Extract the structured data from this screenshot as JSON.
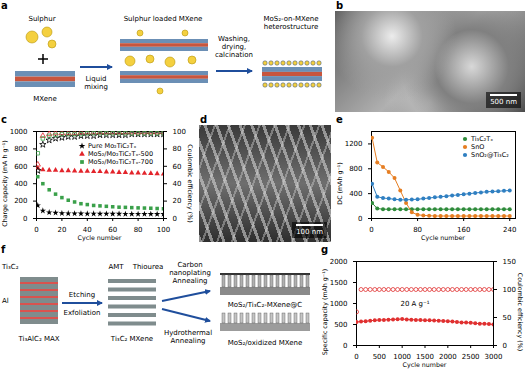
{
  "chart_data": [
    {
      "panel": "c",
      "type": "scatter",
      "x_label": "Cycle number",
      "y_label": "Charge capacity (mA h g⁻¹)",
      "y2_label": "Coulombic efficiency (%)",
      "x": [
        1,
        5,
        10,
        15,
        20,
        25,
        30,
        35,
        40,
        45,
        50,
        55,
        60,
        65,
        70,
        75,
        80,
        85,
        90,
        95,
        100
      ],
      "xlim": [
        0,
        100
      ],
      "xticks": [
        0,
        20,
        40,
        60,
        80,
        100
      ],
      "ylim": [
        0,
        1000
      ],
      "yticks": [
        0,
        200,
        400,
        600,
        800,
        1000
      ],
      "y2lim": [
        0,
        100
      ],
      "y2ticks": [
        0,
        20,
        40,
        60,
        80,
        100
      ],
      "legend": "upper right",
      "series": [
        {
          "name": "Pure Mo₂TiC₂Tₓ",
          "color": "#000000",
          "marker": "star",
          "values": [
            150,
            90,
            70,
            65,
            60,
            58,
            57,
            56,
            55,
            55,
            54,
            54,
            53,
            53,
            52,
            52,
            52,
            51,
            51,
            50,
            50
          ],
          "efficiency": [
            55,
            85,
            90,
            92,
            93,
            94,
            94,
            95,
            95,
            95,
            96,
            96,
            96,
            96,
            96,
            97,
            97,
            97,
            97,
            97,
            97
          ]
        },
        {
          "name": "MoS₂/Mo₂TiC₂Tₓ-500",
          "color": "#e3242b",
          "marker": "triangle",
          "values": [
            580,
            560,
            555,
            555,
            550,
            550,
            548,
            545,
            545,
            540,
            540,
            535,
            535,
            530,
            530,
            525,
            525,
            520,
            518,
            515,
            512
          ],
          "efficiency": [
            62,
            95,
            97,
            98,
            98,
            98,
            98,
            99,
            99,
            99,
            99,
            99,
            99,
            99,
            99,
            99,
            99,
            99,
            99,
            99,
            99
          ]
        },
        {
          "name": "MoS₂/Mo₂TiC₂Tₓ-700",
          "color": "#3aa04a",
          "marker": "square",
          "values": [
            480,
            400,
            330,
            280,
            240,
            210,
            190,
            170,
            160,
            150,
            145,
            140,
            135,
            130,
            128,
            125,
            122,
            120,
            118,
            115,
            112
          ],
          "efficiency": [
            75,
            92,
            95,
            96,
            97,
            97,
            97,
            97,
            98,
            98,
            98,
            98,
            98,
            98,
            98,
            98,
            98,
            98,
            98,
            98,
            98
          ]
        }
      ]
    },
    {
      "panel": "e",
      "type": "line",
      "x_label": "Cycle number",
      "y_label": "DC (mAh g⁻¹)",
      "x": [
        1,
        10,
        20,
        30,
        40,
        50,
        60,
        70,
        80,
        90,
        100,
        110,
        120,
        130,
        140,
        150,
        160,
        170,
        180,
        190,
        200,
        210,
        220,
        230,
        240
      ],
      "xlim": [
        0,
        250
      ],
      "xticks": [
        0,
        80,
        160,
        240
      ],
      "ylim": [
        0,
        1400
      ],
      "yticks": [
        0,
        400,
        800,
        1200
      ],
      "legend": "upper right",
      "series": [
        {
          "name": "Ti₃C₂Tₓ",
          "color": "#2e8b3a",
          "marker": "circle",
          "values": [
            250,
            160,
            150,
            150,
            150,
            150,
            150,
            150,
            150,
            150,
            150,
            150,
            150,
            150,
            150,
            150,
            150,
            150,
            150,
            150,
            150,
            150,
            150,
            150,
            150
          ]
        },
        {
          "name": "SnO",
          "color": "#e67e22",
          "marker": "circle",
          "values": [
            1300,
            900,
            830,
            750,
            650,
            450,
            250,
            100,
            60,
            50,
            45,
            40,
            40,
            40,
            40,
            40,
            40,
            40,
            40,
            40,
            40,
            40,
            40,
            40,
            40
          ]
        },
        {
          "name": "SnO₂@Ti₃C₂",
          "color": "#2f7fc1",
          "marker": "circle",
          "values": [
            560,
            350,
            330,
            320,
            310,
            300,
            300,
            305,
            310,
            320,
            330,
            340,
            350,
            360,
            370,
            380,
            390,
            400,
            410,
            420,
            430,
            435,
            440,
            445,
            450
          ]
        }
      ]
    },
    {
      "panel": "g",
      "type": "line",
      "x_label": "Cycle number",
      "y_label": "Specific capacity (mAh g⁻¹)",
      "y2_label": "Coulombic efficiency (%)",
      "annotation": "20 A g⁻¹",
      "x": [
        1,
        100,
        200,
        300,
        400,
        500,
        600,
        700,
        800,
        900,
        1000,
        1100,
        1200,
        1300,
        1400,
        1500,
        1600,
        1700,
        1800,
        1900,
        2000,
        2100,
        2200,
        2300,
        2400,
        2500,
        2600,
        2700,
        2800,
        2900,
        3000
      ],
      "xlim": [
        0,
        3000
      ],
      "xticks": [
        0,
        500,
        1000,
        1500,
        2000,
        2500,
        3000
      ],
      "ylim": [
        0,
        2000
      ],
      "yticks": [
        0,
        500,
        1000,
        1500,
        2000
      ],
      "y2lim": [
        0,
        150
      ],
      "y2ticks": [
        0,
        50,
        100,
        150
      ],
      "series": [
        {
          "color": "#e03030",
          "marker": "circle",
          "values": [
            560,
            570,
            580,
            590,
            600,
            605,
            610,
            615,
            620,
            625,
            630,
            620,
            615,
            610,
            605,
            600,
            600,
            595,
            590,
            585,
            580,
            570,
            560,
            550,
            545,
            540,
            530,
            520,
            515,
            510,
            500
          ],
          "efficiency": [
            60,
            100,
            100,
            100,
            100,
            100,
            100,
            100,
            100,
            100,
            100,
            100,
            100,
            100,
            100,
            100,
            100,
            100,
            100,
            100,
            100,
            100,
            100,
            100,
            100,
            100,
            100,
            100,
            100,
            100,
            100
          ]
        }
      ]
    }
  ],
  "diagrams": {
    "a": {
      "panel": "a",
      "sulphur": "Sulphur",
      "loaded": "Sulphur loaded MXene",
      "mxene": "MXene",
      "step1": "Liquid mixing",
      "step2": "Washing, drying, calcination",
      "product": "MoS₂-on-MXene heterostructure"
    },
    "b": {
      "panel": "b",
      "scale_bar": "500 nm"
    },
    "d": {
      "panel": "d",
      "scale_bar": "100 nm"
    },
    "f": {
      "panel": "f",
      "layer_ti": "Ti₃C₂",
      "layer_al": "Al",
      "max": "Ti₃AlC₂ MAX",
      "step1_top": "Etching",
      "step1_bottom": "Exfoliation",
      "mxene": "Ti₃C₂ MXene",
      "reagent1": "AMT",
      "reagent2": "Thiourea",
      "route1": "Carbon nanoplating Annealing",
      "route2": "Hydrothermal Annealing",
      "product1": "MoS₂/Ti₃C₂-MXene@C",
      "product2": "MoS₂/oxidized MXene"
    }
  }
}
